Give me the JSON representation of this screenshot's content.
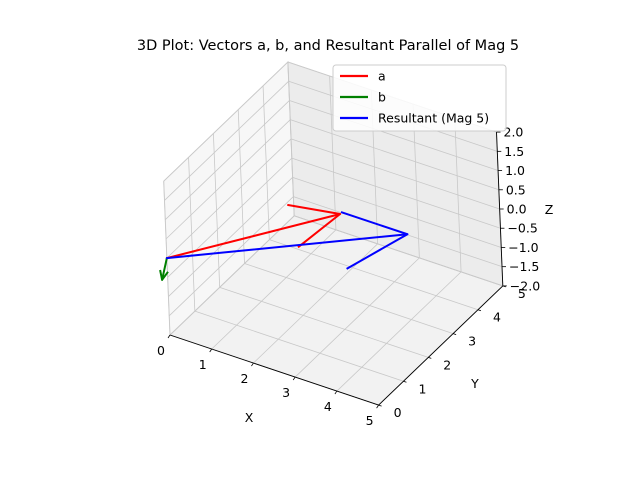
{
  "chart_data": {
    "type": "line",
    "title": "3D Plot: Vectors a, b, and Resultant Parallel of Mag 5",
    "xlabel": "X",
    "ylabel": "Y",
    "zlabel": "Z",
    "xlim": [
      0,
      5
    ],
    "ylim": [
      0,
      5
    ],
    "zlim": [
      -2,
      2
    ],
    "x_ticks": [
      "0",
      "1",
      "2",
      "3",
      "4",
      "5"
    ],
    "y_ticks": [
      "0",
      "1",
      "2",
      "3",
      "4",
      "5"
    ],
    "z_ticks": [
      "−2.0",
      "−1.5",
      "−1.0",
      "−0.5",
      "0.0",
      "0.5",
      "1.0",
      "1.5",
      "2.0"
    ],
    "grid": true,
    "legend_position": "top-right",
    "series": [
      {
        "name": "a",
        "color": "#ff0000",
        "start": [
          0,
          0,
          0
        ],
        "end": [
          3,
          2,
          1
        ]
      },
      {
        "name": "b",
        "color": "#008000",
        "start": [
          0,
          0,
          0
        ],
        "end": [
          -0.2,
          0.1,
          -0.7
        ]
      },
      {
        "name": "Resultant (Mag 5)",
        "color": "#0000ff",
        "start": [
          0,
          0,
          0
        ],
        "end": [
          4.05,
          2.9,
          0.3
        ]
      }
    ]
  }
}
